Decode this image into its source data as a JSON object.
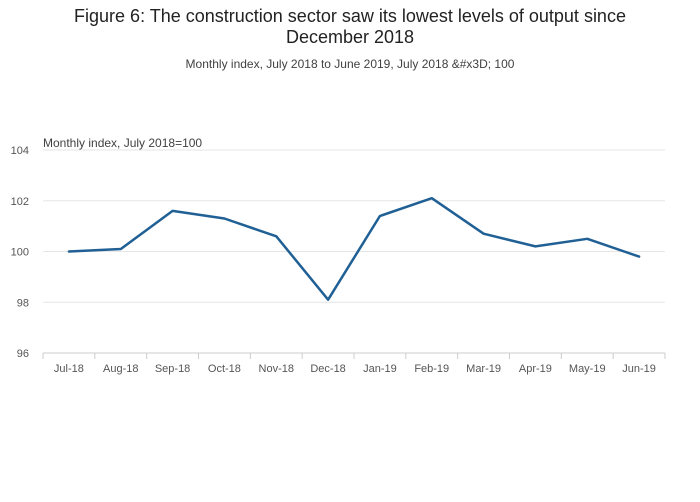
{
  "page": {
    "title": "Figure 6: The construction sector saw its lowest levels of output since December 2018",
    "subtitle": "Monthly index, July 2018 to June 2019, July 2018 &#x3D; 100"
  },
  "colors": {
    "line": "#206095",
    "grid": "#e6e6e6",
    "axis": "#cccccc"
  },
  "chart_data": {
    "type": "line",
    "title": "Figure 6: The construction sector saw its lowest levels of output since December 2018",
    "subtitle": "Monthly index, July 2018 to June 2019, July 2018 &#x3D; 100",
    "ylabel": "Monthly index, July 2018=100",
    "xlabel": "",
    "categories": [
      "Jul-18",
      "Aug-18",
      "Sep-18",
      "Oct-18",
      "Nov-18",
      "Dec-18",
      "Jan-19",
      "Feb-19",
      "Mar-19",
      "Apr-19",
      "May-19",
      "Jun-19"
    ],
    "series": [
      {
        "values": [
          100.0,
          100.1,
          101.6,
          101.3,
          100.6,
          98.1,
          101.4,
          102.1,
          100.7,
          100.2,
          100.5,
          99.8
        ]
      }
    ],
    "ylim": [
      96,
      104
    ],
    "yticks": [
      "96",
      "98",
      "100",
      "102",
      "104"
    ],
    "grid": true,
    "legend": "none"
  }
}
